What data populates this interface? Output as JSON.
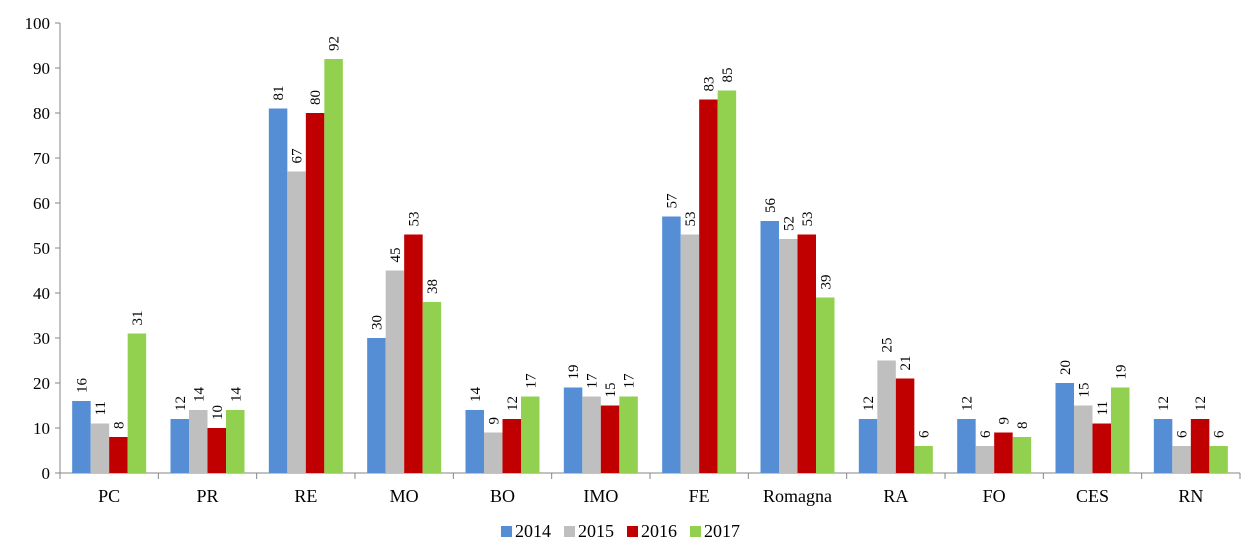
{
  "chart_data": {
    "type": "bar",
    "categories": [
      "PC",
      "PR",
      "RE",
      "MO",
      "BO",
      "IMO",
      "FE",
      "Romagna",
      "RA",
      "FO",
      "CES",
      "RN"
    ],
    "series": [
      {
        "name": "2014",
        "color": "#558ED5",
        "values": [
          16,
          12,
          81,
          30,
          14,
          19,
          57,
          56,
          12,
          12,
          20,
          12
        ]
      },
      {
        "name": "2015",
        "color": "#BFBFBF",
        "values": [
          11,
          14,
          67,
          45,
          9,
          17,
          53,
          52,
          25,
          6,
          15,
          6
        ]
      },
      {
        "name": "2016",
        "color": "#C00000",
        "values": [
          8,
          10,
          80,
          53,
          12,
          15,
          83,
          53,
          21,
          9,
          11,
          12
        ]
      },
      {
        "name": "2017",
        "color": "#92D050",
        "values": [
          31,
          14,
          92,
          38,
          17,
          17,
          85,
          39,
          6,
          8,
          19,
          6
        ]
      }
    ],
    "ylim": [
      0,
      100
    ],
    "yticks": [
      0,
      10,
      20,
      30,
      40,
      50,
      60,
      70,
      80,
      90,
      100
    ],
    "title": "",
    "xlabel": "",
    "ylabel": "",
    "grid": false,
    "legend_position": "bottom"
  }
}
